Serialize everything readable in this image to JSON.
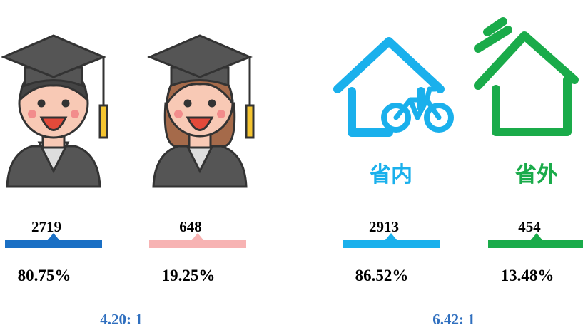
{
  "items": [
    {
      "count": 2719,
      "percent": "80.75%",
      "color": "#1a6fc4"
    },
    {
      "count": 648,
      "percent": "19.25%",
      "color": "#f7b3b3"
    },
    {
      "count": 2913,
      "percent": "86.52%",
      "color": "#1ab0ec",
      "label": "省内"
    },
    {
      "count": 454,
      "percent": "13.48%",
      "color": "#1aab4a",
      "label": "省外"
    }
  ],
  "ratios": [
    "4.20: 1",
    "6.42: 1"
  ],
  "ratio_color": "#2f6fbf"
}
